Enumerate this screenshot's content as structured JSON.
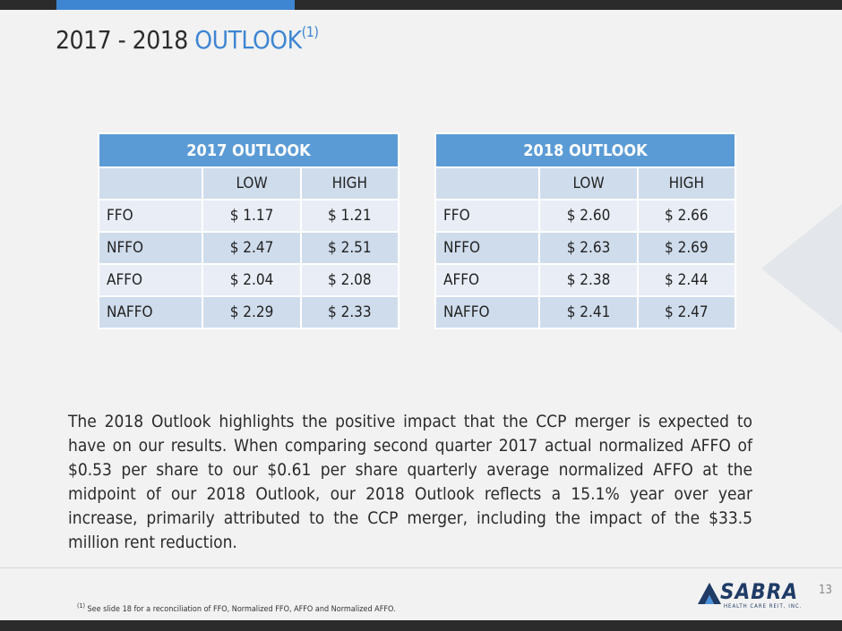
{
  "title": {
    "main": "2017 - 2018 ",
    "accent": "OUTLOOK",
    "footnote_ref": "(1)"
  },
  "tables": {
    "t2017": {
      "title": "2017 OUTLOOK",
      "low_label": "LOW",
      "high_label": "HIGH",
      "rows": [
        {
          "label": "FFO",
          "low": "$ 1.17",
          "high": "$ 1.21"
        },
        {
          "label": "NFFO",
          "low": "$ 2.47",
          "high": "$ 2.51"
        },
        {
          "label": "AFFO",
          "low": "$ 2.04",
          "high": "$ 2.08"
        },
        {
          "label": "NAFFO",
          "low": "$ 2.29",
          "high": "$ 2.33"
        }
      ]
    },
    "t2018": {
      "title": "2018 OUTLOOK",
      "low_label": "LOW",
      "high_label": "HIGH",
      "rows": [
        {
          "label": "FFO",
          "low": "$ 2.60",
          "high": "$ 2.66"
        },
        {
          "label": "NFFO",
          "low": "$ 2.63",
          "high": "$ 2.69"
        },
        {
          "label": "AFFO",
          "low": "$ 2.38",
          "high": "$ 2.44"
        },
        {
          "label": "NAFFO",
          "low": "$ 2.41",
          "high": "$ 2.47"
        }
      ]
    }
  },
  "paragraph": "The 2018 Outlook highlights the positive impact that the CCP merger is expected to have on our results.  When comparing second quarter 2017 actual normalized AFFO of $0.53 per share to our $0.61 per share quarterly average normalized AFFO at the midpoint of our 2018 Outlook, our 2018 Outlook reflects a 15.1% year over year increase, primarily attributed to the CCP merger, including the impact of the $33.5 million rent reduction.",
  "footnote": {
    "marker": "(1)",
    "text": " See slide 18 for a reconciliation of FFO, Normalized FFO, AFFO and Normalized AFFO."
  },
  "logo": {
    "word": "SABRA",
    "tagline": "HEALTH CARE REIT, INC."
  },
  "page_number": "13",
  "colors": {
    "accent": "#3e86d2",
    "table_header": "#5b9bd5",
    "row_dark": "#cfdcec",
    "row_light": "#e8edf6",
    "logo": "#1f3b66"
  }
}
